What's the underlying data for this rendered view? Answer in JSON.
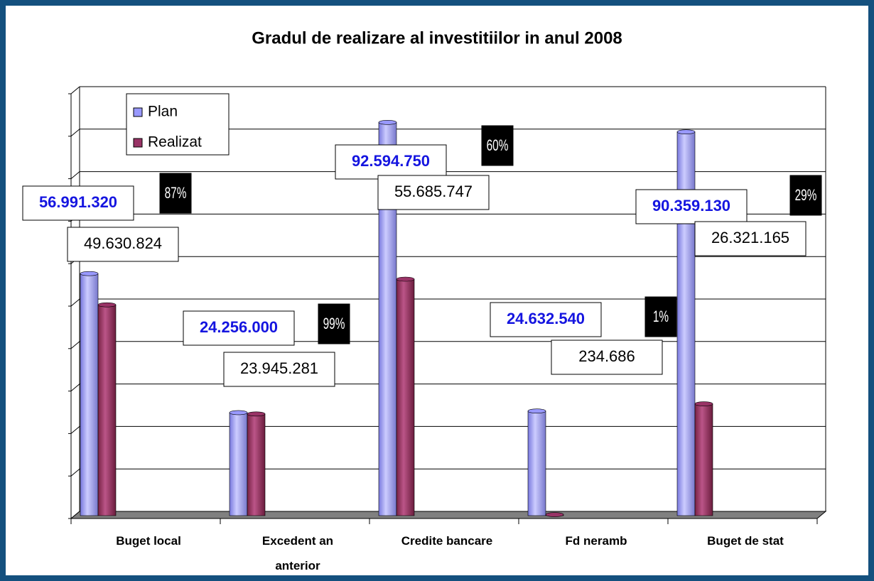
{
  "chart_data": {
    "type": "bar3d",
    "title": "Gradul de realizare al investitiilor in anul 2008",
    "categories": [
      "Buget local",
      "Excedent an anterior",
      "Credite bancare",
      "Fd neramb",
      "Buget de stat"
    ],
    "series": [
      {
        "name": "Plan",
        "color": "#9999ff",
        "values": [
          56991320,
          24256000,
          92594750,
          24632540,
          90359130
        ],
        "value_labels": [
          "56.991.320",
          "24.256.000",
          "92.594.750",
          "24.632.540",
          "90.359.130"
        ]
      },
      {
        "name": "Realizat",
        "color": "#993366",
        "values": [
          49630824,
          23945281,
          55685747,
          234686,
          26321165
        ],
        "value_labels": [
          "49.630.824",
          "23.945.281",
          "55.685.747",
          "234.686",
          "26.321.165"
        ]
      }
    ],
    "annotations": [
      "87%",
      "99%",
      "60%",
      "1%",
      "29%"
    ],
    "ylim": [
      0,
      100000000
    ],
    "yticks": [
      0,
      10000000,
      20000000,
      30000000,
      40000000,
      50000000,
      60000000,
      70000000,
      80000000,
      90000000,
      100000000
    ],
    "grid": true,
    "legend": "top-left"
  }
}
